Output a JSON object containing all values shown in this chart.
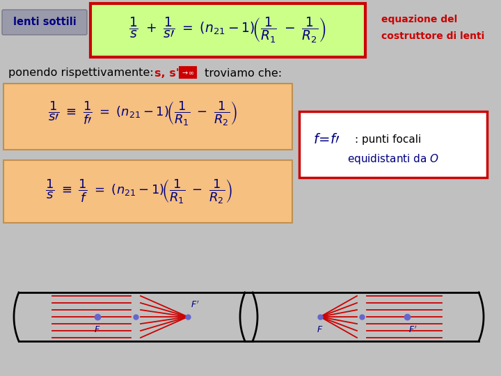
{
  "bg_color": "#c0c0c0",
  "title_text": "lenti sottili",
  "title_text_color": "#000080",
  "title_bg": "#999aaa",
  "main_eq_bg": "#ccff88",
  "main_eq_border": "#cc0000",
  "right_label_color": "#cc0000",
  "right_label_line1": "equazione del",
  "right_label_line2": "costruttore di lenti",
  "formula_bg": "#f5c080",
  "formula_border": "#cc8800",
  "box_border_color": "#cc0000",
  "box_bg": "#ffffff",
  "blue_dark": "#000080",
  "red_dark": "#cc0000",
  "ray_color": "#cc0000",
  "dot_color": "#6666cc",
  "lens_color": "#000000"
}
